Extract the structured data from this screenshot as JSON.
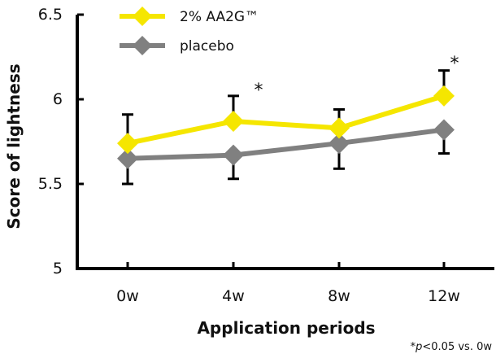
{
  "chart_data": {
    "type": "line",
    "xlabel": "Application periods",
    "ylabel": "Score of lightness",
    "categories": [
      "0w",
      "4w",
      "8w",
      "12w"
    ],
    "ylim": [
      5,
      6.5
    ],
    "yticks": [
      "5",
      "5.5",
      "6",
      "6.5"
    ],
    "grid": false,
    "legend_position": "top-left",
    "series": [
      {
        "name": "2% AA2G™",
        "color": "#f5e600",
        "values": [
          5.74,
          5.87,
          5.83,
          6.02
        ],
        "error_upper": [
          5.91,
          6.02,
          5.94,
          6.17
        ],
        "error_lower": null
      },
      {
        "name": "placebo",
        "color": "#808080",
        "values": [
          5.65,
          5.67,
          5.74,
          5.82
        ],
        "error_upper": null,
        "error_lower": [
          5.5,
          5.53,
          5.59,
          5.68
        ]
      }
    ],
    "significance": [
      {
        "category": "4w",
        "label": "*"
      },
      {
        "category": "12w",
        "label": "*"
      }
    ],
    "footnote": {
      "prefix": "*",
      "italic": "p",
      "suffix": "<0.05 vs. 0w"
    }
  }
}
